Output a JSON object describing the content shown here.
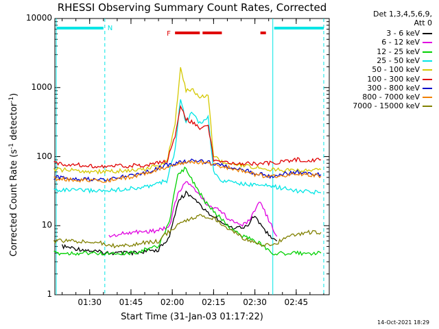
{
  "chart_data": {
    "type": "line",
    "title": "RHESSI Observing Summary Count Rates, Corrected",
    "xlabel": "Start Time (31-Jan-03 01:17:22)",
    "ylabel_parts": [
      "Corrected Count Rate (s",
      "-1",
      " detector",
      "-1",
      ")"
    ],
    "y_scale": "log",
    "ylim": [
      1,
      10000
    ],
    "xlim": [
      "01:17:22",
      "02:57:00"
    ],
    "yticks": [
      "1",
      "10",
      "100",
      "1000",
      "10000"
    ],
    "xticks": [
      "01:30",
      "01:45",
      "02:00",
      "02:15",
      "02:30",
      "02:45"
    ],
    "legend_header": [
      "Det 1,3,4,5,6,9,",
      "Att 0"
    ],
    "legend_placement": "right, outside plot",
    "timestamp": "14-Oct-2021 18:29",
    "annotations": {
      "night_bar_label": "N",
      "flare_bar_label": "F",
      "night_bar_color": "#00e5e5",
      "flare_bar_color": "#e00000"
    },
    "series": [
      {
        "name": "3 - 6 keV",
        "color": "#000000",
        "t": [
          "01:20",
          "01:36",
          "01:45",
          "01:55",
          "01:59",
          "02:02",
          "02:05",
          "02:08",
          "02:13",
          "02:17",
          "02:22",
          "02:27",
          "02:30",
          "02:34",
          "02:38"
        ],
        "values": [
          5,
          4,
          4,
          4.5,
          7,
          22,
          30,
          25,
          15,
          12,
          9,
          10,
          14,
          8,
          6
        ]
      },
      {
        "name": "6 - 12 keV",
        "color": "#e000e0",
        "t": [
          "01:37",
          "01:45",
          "01:55",
          "01:59",
          "02:02",
          "02:05",
          "02:08",
          "02:13",
          "02:17",
          "02:21",
          "02:25",
          "02:28",
          "02:32",
          "02:35",
          "02:38"
        ],
        "values": [
          7,
          8,
          8.5,
          10,
          30,
          42,
          35,
          20,
          17,
          12,
          10,
          12,
          23,
          12,
          7
        ]
      },
      {
        "name": "12 - 25 keV",
        "color": "#00d000",
        "t": [
          "01:17",
          "01:30",
          "01:45",
          "01:55",
          "01:59",
          "02:02",
          "02:05",
          "02:08",
          "02:12",
          "02:16",
          "02:20",
          "02:26",
          "02:32",
          "02:36",
          "02:44",
          "02:54"
        ],
        "values": [
          4,
          4,
          4,
          5,
          12,
          55,
          70,
          40,
          22,
          15,
          10,
          7,
          5.5,
          4,
          4,
          4
        ]
      },
      {
        "name": "25 - 50 keV",
        "color": "#00e5e5",
        "t": [
          "01:17",
          "01:35",
          "01:50",
          "01:58",
          "02:01",
          "02:03",
          "02:05",
          "02:07",
          "02:10",
          "02:13",
          "02:15",
          "02:18",
          "02:25",
          "02:35",
          "02:45",
          "02:54"
        ],
        "values": [
          33,
          32,
          36,
          45,
          120,
          700,
          300,
          450,
          300,
          380,
          60,
          45,
          40,
          38,
          32,
          30
        ]
      },
      {
        "name": "50 - 100 keV",
        "color": "#d4c800",
        "t": [
          "01:17",
          "01:35",
          "01:50",
          "01:58",
          "02:01",
          "02:03",
          "02:05",
          "02:07",
          "02:10",
          "02:13",
          "02:15",
          "02:18",
          "02:25",
          "02:35",
          "02:45",
          "02:54"
        ],
        "values": [
          65,
          60,
          65,
          85,
          300,
          2000,
          900,
          950,
          700,
          800,
          100,
          85,
          75,
          65,
          62,
          65
        ]
      },
      {
        "name": "100 - 300 keV",
        "color": "#e00000",
        "t": [
          "01:17",
          "01:35",
          "01:50",
          "01:58",
          "02:01",
          "02:03",
          "02:05",
          "02:07",
          "02:10",
          "02:13",
          "02:15",
          "02:18",
          "02:25",
          "02:35",
          "02:45",
          "02:54"
        ],
        "values": [
          80,
          72,
          75,
          85,
          200,
          550,
          350,
          320,
          260,
          280,
          90,
          85,
          80,
          80,
          90,
          90
        ]
      },
      {
        "name": "300 - 800 keV",
        "color": "#0000c8",
        "t": [
          "01:17",
          "01:35",
          "01:50",
          "01:58",
          "02:03",
          "02:08",
          "02:15",
          "02:25",
          "02:35",
          "02:45",
          "02:54"
        ],
        "values": [
          50,
          46,
          58,
          75,
          82,
          88,
          80,
          65,
          52,
          60,
          55
        ]
      },
      {
        "name": "800 - 7000 keV",
        "color": "#f08000",
        "t": [
          "01:17",
          "01:35",
          "01:50",
          "01:58",
          "02:03",
          "02:08",
          "02:15",
          "02:25",
          "02:35",
          "02:45",
          "02:54"
        ],
        "values": [
          48,
          44,
          55,
          72,
          80,
          85,
          78,
          62,
          50,
          57,
          52
        ]
      },
      {
        "name": "7000 - 15000 keV",
        "color": "#808000",
        "t": [
          "01:17",
          "01:30",
          "01:40",
          "01:55",
          "02:00",
          "02:05",
          "02:10",
          "02:15",
          "02:20",
          "02:28",
          "02:36",
          "02:42",
          "02:48",
          "02:54"
        ],
        "values": [
          6,
          6,
          5,
          6,
          9,
          12,
          14,
          13,
          9,
          6,
          5,
          7,
          8,
          8
        ]
      }
    ]
  }
}
